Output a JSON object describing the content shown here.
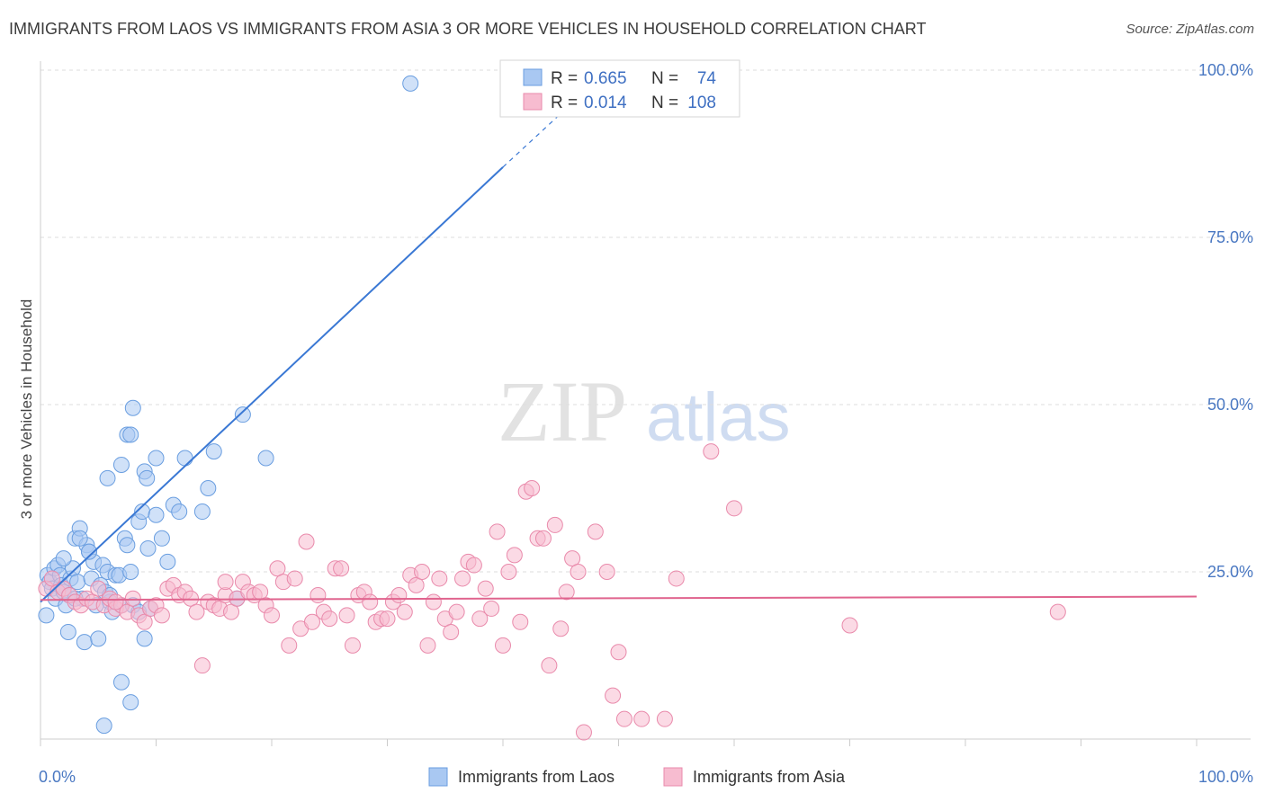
{
  "title": "IMMIGRANTS FROM LAOS VS IMMIGRANTS FROM ASIA 3 OR MORE VEHICLES IN HOUSEHOLD CORRELATION CHART",
  "source": "Source: ZipAtlas.com",
  "watermark": {
    "zip": "ZIP",
    "atlas": "atlas"
  },
  "colors": {
    "laos_fill": "#a9c8f2",
    "laos_stroke": "#6a9ee0",
    "laos_line": "#3a78d4",
    "asia_fill": "#f7bcd0",
    "asia_stroke": "#e98aab",
    "asia_line": "#e0648e",
    "grid": "#dddddd",
    "tick_label": "#4a78c2"
  },
  "legend_stats": [
    {
      "r_label": "R = ",
      "r_value": "0.665",
      "n_label": "N = ",
      "n_value": "74"
    },
    {
      "r_label": "R = ",
      "r_value": "0.014",
      "n_label": "N = ",
      "n_value": "108"
    }
  ],
  "chart_data": {
    "type": "scatter",
    "title": "IMMIGRANTS FROM LAOS VS IMMIGRANTS FROM ASIA 3 OR MORE VEHICLES IN HOUSEHOLD CORRELATION CHART",
    "xlabel": "",
    "ylabel": "3 or more Vehicles in Household",
    "xlim": [
      0,
      100
    ],
    "ylim": [
      0,
      100
    ],
    "x_tick_labels": [
      "0.0%",
      "100.0%"
    ],
    "y_ticks": [
      25,
      50,
      75,
      100
    ],
    "y_tick_labels": [
      "25.0%",
      "50.0%",
      "75.0%",
      "100.0%"
    ],
    "grid": true,
    "legend_position": "bottom",
    "series": [
      {
        "name": "Immigrants from Laos",
        "r": 0.665,
        "n": 74,
        "trend": {
          "x0": 0,
          "y0": 20.5,
          "x1": 40,
          "y1": 85.5,
          "dash_x1": 45,
          "dash_y1": 93.5
        },
        "points": [
          [
            0.5,
            18.5
          ],
          [
            0.6,
            24.5
          ],
          [
            0.8,
            23.5
          ],
          [
            1.0,
            22.5
          ],
          [
            1.2,
            25.5
          ],
          [
            1.3,
            21.0
          ],
          [
            1.5,
            26.0
          ],
          [
            1.7,
            24.5
          ],
          [
            1.8,
            23.0
          ],
          [
            2.0,
            22.0
          ],
          [
            2.2,
            20.0
          ],
          [
            2.4,
            16.0
          ],
          [
            2.6,
            24.0
          ],
          [
            2.8,
            25.5
          ],
          [
            3.0,
            30.0
          ],
          [
            3.2,
            23.5
          ],
          [
            3.4,
            31.5
          ],
          [
            3.6,
            21.0
          ],
          [
            3.8,
            14.5
          ],
          [
            4.0,
            29.0
          ],
          [
            4.2,
            28.0
          ],
          [
            4.4,
            24.0
          ],
          [
            4.6,
            26.5
          ],
          [
            4.8,
            20.0
          ],
          [
            5.0,
            15.0
          ],
          [
            5.2,
            23.0
          ],
          [
            5.4,
            26.0
          ],
          [
            5.6,
            22.0
          ],
          [
            5.8,
            25.0
          ],
          [
            6.0,
            20.5
          ],
          [
            6.2,
            19.0
          ],
          [
            6.5,
            24.5
          ],
          [
            6.8,
            24.5
          ],
          [
            7.0,
            20.0
          ],
          [
            7.3,
            30.0
          ],
          [
            7.5,
            29.0
          ],
          [
            7.8,
            25.0
          ],
          [
            8.0,
            20.0
          ],
          [
            8.5,
            32.5
          ],
          [
            8.8,
            34.0
          ],
          [
            9.0,
            15.0
          ],
          [
            9.3,
            28.5
          ],
          [
            10.0,
            33.5
          ],
          [
            10.5,
            30.0
          ],
          [
            11.0,
            26.5
          ],
          [
            11.5,
            35.0
          ],
          [
            12.0,
            34.0
          ],
          [
            14.0,
            34.0
          ],
          [
            14.5,
            37.5
          ],
          [
            12.5,
            42.0
          ],
          [
            10.0,
            42.0
          ],
          [
            9.0,
            40.0
          ],
          [
            9.2,
            39.0
          ],
          [
            7.5,
            45.5
          ],
          [
            7.8,
            45.5
          ],
          [
            8.0,
            49.5
          ],
          [
            7.0,
            41.0
          ],
          [
            5.8,
            39.0
          ],
          [
            3.4,
            30.0
          ],
          [
            4.2,
            28.0
          ],
          [
            7.0,
            8.5
          ],
          [
            7.8,
            5.5
          ],
          [
            5.5,
            2.0
          ],
          [
            2.0,
            27.0
          ],
          [
            2.5,
            21.5
          ],
          [
            3.0,
            21.0
          ],
          [
            6.0,
            21.5
          ],
          [
            8.5,
            19.0
          ],
          [
            9.5,
            19.5
          ],
          [
            17.0,
            21.0
          ],
          [
            17.5,
            48.5
          ],
          [
            19.5,
            42.0
          ],
          [
            15.0,
            43.0
          ],
          [
            32.0,
            98.0
          ]
        ]
      },
      {
        "name": "Immigrants from Asia",
        "r": 0.014,
        "n": 108,
        "trend": {
          "x0": 0,
          "y0": 20.8,
          "x1": 100,
          "y1": 21.3
        },
        "points": [
          [
            0.5,
            22.5
          ],
          [
            1.0,
            24.0
          ],
          [
            1.5,
            22.0
          ],
          [
            2.0,
            22.5
          ],
          [
            2.5,
            21.5
          ],
          [
            3.0,
            20.5
          ],
          [
            3.5,
            20.0
          ],
          [
            4.0,
            21.0
          ],
          [
            4.5,
            20.5
          ],
          [
            5.0,
            22.5
          ],
          [
            5.5,
            20.0
          ],
          [
            6.0,
            21.0
          ],
          [
            6.5,
            19.5
          ],
          [
            7.0,
            20.0
          ],
          [
            7.5,
            19.0
          ],
          [
            8.0,
            21.0
          ],
          [
            8.5,
            18.5
          ],
          [
            9.0,
            17.5
          ],
          [
            9.5,
            19.5
          ],
          [
            10.0,
            20.0
          ],
          [
            10.5,
            18.5
          ],
          [
            11.0,
            22.5
          ],
          [
            11.5,
            23.0
          ],
          [
            12.0,
            21.5
          ],
          [
            12.5,
            22.0
          ],
          [
            13.0,
            21.0
          ],
          [
            13.5,
            19.0
          ],
          [
            14.0,
            11.0
          ],
          [
            14.5,
            20.5
          ],
          [
            15.0,
            20.0
          ],
          [
            15.5,
            19.5
          ],
          [
            16.0,
            21.5
          ],
          [
            16.5,
            19.0
          ],
          [
            17.0,
            21.0
          ],
          [
            17.5,
            23.5
          ],
          [
            18.0,
            22.0
          ],
          [
            18.5,
            21.5
          ],
          [
            19.0,
            22.0
          ],
          [
            19.5,
            20.0
          ],
          [
            20.0,
            18.5
          ],
          [
            20.5,
            25.5
          ],
          [
            21.0,
            23.5
          ],
          [
            21.5,
            14.0
          ],
          [
            22.0,
            24.0
          ],
          [
            22.5,
            16.5
          ],
          [
            23.0,
            29.5
          ],
          [
            23.5,
            17.5
          ],
          [
            24.0,
            21.5
          ],
          [
            24.5,
            19.0
          ],
          [
            25.0,
            18.0
          ],
          [
            25.5,
            25.5
          ],
          [
            26.0,
            25.5
          ],
          [
            26.5,
            18.5
          ],
          [
            27.0,
            14.0
          ],
          [
            27.5,
            21.5
          ],
          [
            28.0,
            22.0
          ],
          [
            28.5,
            20.5
          ],
          [
            29.0,
            17.5
          ],
          [
            29.5,
            18.0
          ],
          [
            30.0,
            18.0
          ],
          [
            30.5,
            20.5
          ],
          [
            31.0,
            21.5
          ],
          [
            31.5,
            19.0
          ],
          [
            32.0,
            24.5
          ],
          [
            32.5,
            23.0
          ],
          [
            33.0,
            25.0
          ],
          [
            33.5,
            14.0
          ],
          [
            34.0,
            20.5
          ],
          [
            34.5,
            24.0
          ],
          [
            35.0,
            18.0
          ],
          [
            35.5,
            16.0
          ],
          [
            36.0,
            19.0
          ],
          [
            36.5,
            24.0
          ],
          [
            37.0,
            26.5
          ],
          [
            37.5,
            26.0
          ],
          [
            38.0,
            18.0
          ],
          [
            38.5,
            22.5
          ],
          [
            39.0,
            19.5
          ],
          [
            39.5,
            31.0
          ],
          [
            40.0,
            14.0
          ],
          [
            40.5,
            25.0
          ],
          [
            41.0,
            27.5
          ],
          [
            41.5,
            17.5
          ],
          [
            42.0,
            37.0
          ],
          [
            42.5,
            37.5
          ],
          [
            43.0,
            30.0
          ],
          [
            43.5,
            30.0
          ],
          [
            44.0,
            11.0
          ],
          [
            44.5,
            32.0
          ],
          [
            45.0,
            16.5
          ],
          [
            45.5,
            22.0
          ],
          [
            46.0,
            27.0
          ],
          [
            46.5,
            25.0
          ],
          [
            47.0,
            1.0
          ],
          [
            48.0,
            31.0
          ],
          [
            49.0,
            25.0
          ],
          [
            49.5,
            6.5
          ],
          [
            50.0,
            13.0
          ],
          [
            50.5,
            3.0
          ],
          [
            52.0,
            3.0
          ],
          [
            54.0,
            3.0
          ],
          [
            55.0,
            24.0
          ],
          [
            58.0,
            43.0
          ],
          [
            60.0,
            34.5
          ],
          [
            70.0,
            17.0
          ],
          [
            88.0,
            19.0
          ],
          [
            16.0,
            23.5
          ],
          [
            6.5,
            20.5
          ]
        ]
      }
    ]
  },
  "legend": {
    "items": [
      {
        "label": "Immigrants from Laos"
      },
      {
        "label": "Immigrants from Asia"
      }
    ]
  }
}
